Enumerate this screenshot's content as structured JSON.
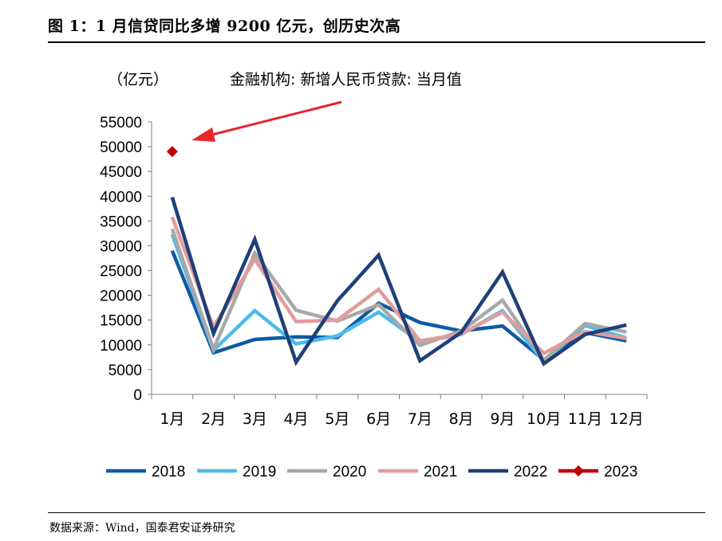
{
  "figure": {
    "title": "图 1：1 月信贷同比多增 9200 亿元，创历史次高",
    "source": "数据来源：Wind，国泰君安证券研究"
  },
  "chart_data": {
    "type": "line",
    "title": "金融机构: 新增人民币贷款: 当月值",
    "ylabel": "（亿元）",
    "xlabel": "",
    "ylim": [
      0,
      55000
    ],
    "yticks": [
      0,
      5000,
      10000,
      15000,
      20000,
      25000,
      30000,
      35000,
      40000,
      45000,
      50000,
      55000
    ],
    "categories": [
      "1月",
      "2月",
      "3月",
      "4月",
      "5月",
      "6月",
      "7月",
      "8月",
      "9月",
      "10月",
      "11月",
      "12月"
    ],
    "grid": false,
    "legend": "bottom",
    "annotations": [
      {
        "type": "arrow",
        "target": "2023-1月",
        "color": "#e8262b"
      }
    ],
    "series": [
      {
        "name": "2018",
        "color": "#0e5aa7",
        "marker": "none",
        "values": [
          29000,
          8400,
          11100,
          11600,
          11500,
          18400,
          14500,
          12800,
          13800,
          7000,
          12500,
          10800
        ]
      },
      {
        "name": "2019",
        "color": "#4dbbea",
        "marker": "none",
        "values": [
          32300,
          8900,
          16900,
          10200,
          11800,
          16600,
          10600,
          12100,
          16900,
          6600,
          13900,
          11400
        ]
      },
      {
        "name": "2020",
        "color": "#a8a8a8",
        "marker": "none",
        "values": [
          33400,
          9100,
          28500,
          17000,
          14800,
          18100,
          9900,
          12800,
          19000,
          6900,
          14300,
          12600
        ]
      },
      {
        "name": "2021",
        "color": "#e29c9c",
        "marker": "none",
        "values": [
          35800,
          13600,
          27300,
          14700,
          15000,
          21200,
          10800,
          12200,
          16600,
          8300,
          12700,
          11300
        ]
      },
      {
        "name": "2022",
        "color": "#1f3f78",
        "marker": "none",
        "values": [
          39800,
          12300,
          31300,
          6500,
          18900,
          28100,
          6800,
          12500,
          24700,
          6200,
          12100,
          14000
        ]
      },
      {
        "name": "2023",
        "color": "#c00000",
        "marker": "diamond",
        "values": [
          49000,
          null,
          null,
          null,
          null,
          null,
          null,
          null,
          null,
          null,
          null,
          null
        ]
      }
    ]
  }
}
